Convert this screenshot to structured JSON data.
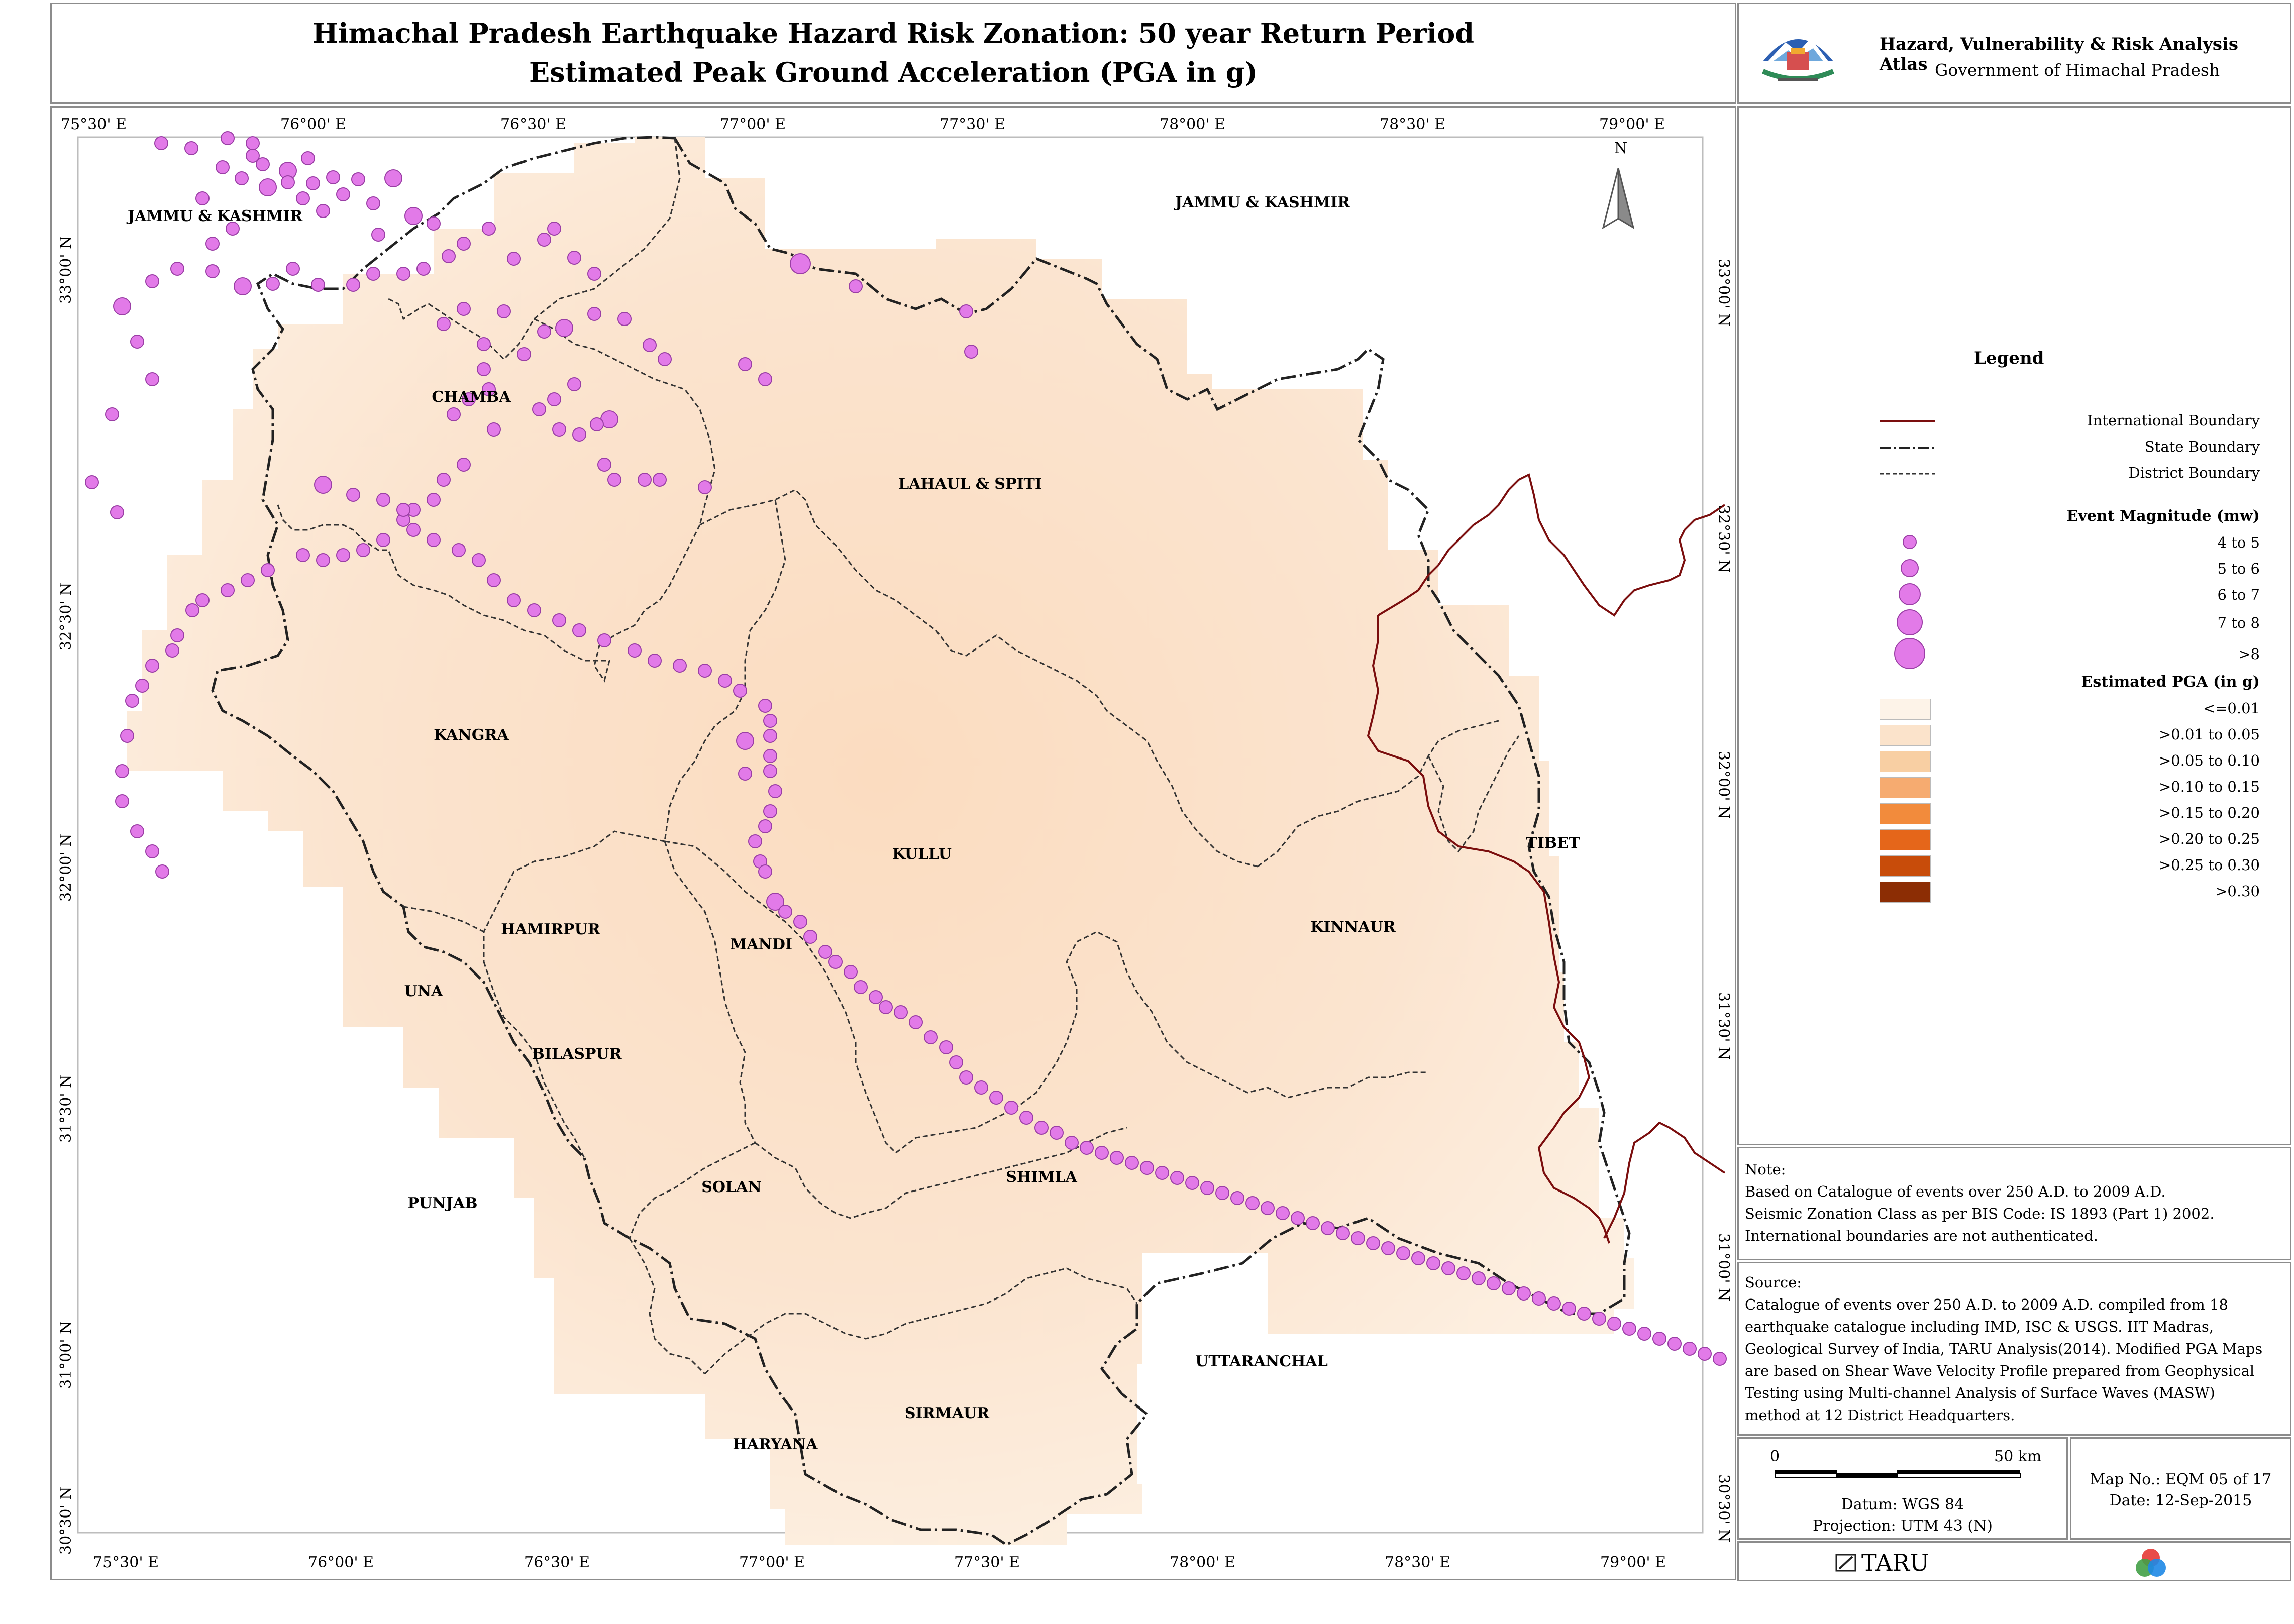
{
  "title": {
    "line1": "Himachal Pradesh Earthquake Hazard Risk Zonation: 50 year Return Period",
    "line2": "Estimated Peak Ground Acceleration (PGA in g)"
  },
  "atlas": {
    "name": "Hazard, Vulnerability & Risk Analysis Atlas",
    "govt": "Government of Himachal Pradesh"
  },
  "map": {
    "top_ticks": [
      "75°30' E",
      "76°00' E",
      "76°30' E",
      "77°00' E",
      "77°30' E",
      "78°00' E",
      "78°30' E",
      "79°00' E"
    ],
    "bottom_ticks": [
      "75°30' E",
      "76°00' E",
      "76°30' E",
      "77°00' E",
      "77°30' E",
      "78°00' E",
      "78°30' E",
      "79°00' E"
    ],
    "left_ticks": [
      "33°00' N",
      "32°30' N",
      "32°00' N",
      "31°30' N",
      "31°00' N",
      "30°30' N"
    ],
    "right_ticks": [
      "33°00' N",
      "32°30' N",
      "32°00' N",
      "31°30' N",
      "31°00' N",
      "30°30' N"
    ],
    "north_label": "N",
    "districts": [
      "CHAMBA",
      "LAHAUL & SPITI",
      "KANGRA",
      "KULLU",
      "HAMIRPUR",
      "MANDI",
      "KINNAUR",
      "UNA",
      "BILASPUR",
      "SHIMLA",
      "SOLAN",
      "SIRMAUR"
    ],
    "neighbours": [
      "JAMMU & KASHMIR",
      "JAMMU & KASHMIR",
      "TIBET",
      "PUNJAB",
      "UTTARANCHAL",
      "HARYANA"
    ]
  },
  "legend": {
    "title": "Legend",
    "boundaries": [
      "International Boundary",
      "State Boundary",
      "District Boundary"
    ],
    "magnitude_title": "Event Magnitude (mw)",
    "magnitudes": [
      "4 to 5",
      "5 to 6",
      "6 to 7",
      "7 to 8",
      ">8"
    ],
    "pga_title": "Estimated PGA (in g)",
    "pga_classes": [
      {
        "label": "<=0.01",
        "color": "#fdf3e8"
      },
      {
        "label": ">0.01 to 0.05",
        "color": "#fbe3cb"
      },
      {
        "label": ">0.05 to 0.10",
        "color": "#f8cfa3"
      },
      {
        "label": ">0.10 to 0.15",
        "color": "#f6ab70"
      },
      {
        "label": ">0.15 to 0.20",
        "color": "#f28b3c"
      },
      {
        "label": ">0.20 to 0.25",
        "color": "#e5661a"
      },
      {
        "label": ">0.25 to 0.30",
        "color": "#c84c0a"
      },
      {
        "label": ">0.30",
        "color": "#8c2d04"
      }
    ],
    "colors": {
      "intl": "#7b0e0e",
      "event_fill": "#e27ae8",
      "event_stroke": "#9a3fa5"
    }
  },
  "note": {
    "heading": "Note:",
    "lines": [
      "Based on Catalogue of events over 250 A.D. to 2009 A.D.",
      "Seismic Zonation Class as per BIS Code: IS 1893 (Part 1) 2002.",
      "International boundaries are not authenticated."
    ]
  },
  "source": {
    "heading": "Source:",
    "lines": [
      "Catalogue of events over 250 A.D. to 2009 A.D. compiled from 18",
      "earthquake catalogue including IMD, ISC & USGS. IIT Madras,",
      "Geological Survey of India, TARU Analysis(2014). Modified PGA Maps",
      "are based on Shear Wave Velocity Profile prepared from Geophysical",
      "Testing using Multi-channel Analysis of Surface Waves (MASW)",
      "method at 12 District Headquarters."
    ]
  },
  "scale": {
    "zero": "0",
    "end": "50 km",
    "datum": "Datum: WGS 84",
    "projection": "Projection: UTM 43 (N)"
  },
  "mapinfo": {
    "number": "Map No.: EQM 05 of 17",
    "date": "Date: 12-Sep-2015"
  },
  "taru": {
    "name": "TARU"
  }
}
